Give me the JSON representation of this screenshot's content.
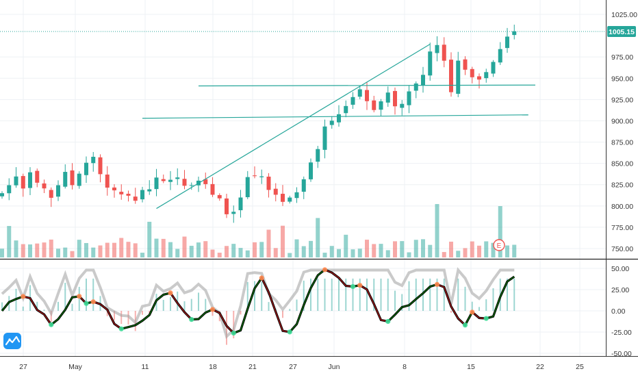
{
  "chart_data": [
    {
      "type": "candlestick",
      "panel": "price",
      "y_ticks": [
        "1025.00",
        "975.00",
        "950.00",
        "925.00",
        "900.00",
        "875.00",
        "850.00",
        "825.00",
        "800.00",
        "775.00",
        "750.00"
      ],
      "ylim": [
        742,
        1032
      ],
      "last_price_label": "1005.15",
      "last_price": 1005.15,
      "x_labels": [
        "27",
        "May",
        "11",
        "18",
        "21",
        "27",
        "Jun",
        "8",
        "15",
        "22",
        "25"
      ],
      "earnings_marker": "E",
      "colors": {
        "up": "#26a69a",
        "down": "#ef5350",
        "line": "#26a69a",
        "axis_text": "#333333"
      },
      "trendlines": [
        {
          "from": [
            22.0,
            797
          ],
          "to": [
            61.0,
            990
          ]
        },
        {
          "from": [
            28.0,
            941
          ],
          "to": [
            76.0,
            942
          ]
        },
        {
          "from": [
            20.0,
            903
          ],
          "to": [
            75.0,
            907
          ]
        }
      ]
    },
    {
      "type": "oscillator",
      "panel": "indicator",
      "y_ticks": [
        "50.00",
        "25.00",
        "0.00",
        "-25.00",
        "-50.00"
      ],
      "ylim": [
        -50,
        50
      ],
      "colors": {
        "signal": "#000000",
        "signal_up": "#0a7a0a",
        "signal_down": "#b71c1c",
        "slow": "#9e9e9e",
        "hist_pos": "#26a69a",
        "hist_neg": "#ef5350",
        "dot_up": "#3ddc97",
        "dot_down": "#ff8a50"
      }
    }
  ]
}
